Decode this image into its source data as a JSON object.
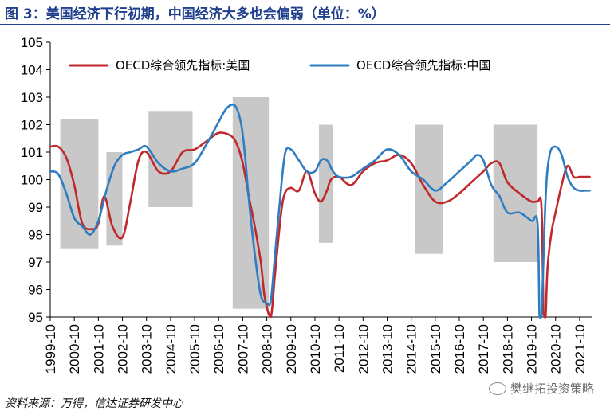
{
  "title": "图 3：美国经济下行初期，中国经济大多也会偏弱（单位：%）",
  "source": "资料来源：万得，信达证券研发中心",
  "watermark": "樊继拓投资策略",
  "colors": {
    "title": "#1f3e8c",
    "us": "#c0282c",
    "cn": "#2e7dc0",
    "shade": "#c8c8c8"
  },
  "chart_data": {
    "type": "line",
    "title": "",
    "xlabel": "",
    "ylabel": "",
    "ylim": [
      95,
      105
    ],
    "yticks": [
      95,
      96,
      97,
      98,
      99,
      100,
      101,
      102,
      103,
      104,
      105
    ],
    "xlim": [
      "1999-10",
      "2022-04"
    ],
    "x_tick_labels": [
      "1999-10",
      "2000-10",
      "2001-10",
      "2002-10",
      "2003-10",
      "2004-10",
      "2005-10",
      "2006-10",
      "2007-10",
      "2008-10",
      "2009-10",
      "2010-10",
      "2011-10",
      "2012-10",
      "2013-10",
      "2014-10",
      "2015-10",
      "2016-10",
      "2017-10",
      "2018-10",
      "2019-10",
      "2020-10",
      "2021-10"
    ],
    "legend_position": "top",
    "grid": false,
    "shaded_bands": [
      {
        "start": "2000-03",
        "end": "2001-10",
        "low": 97.5,
        "high": 102.2
      },
      {
        "start": "2002-02",
        "end": "2002-10",
        "low": 97.6,
        "high": 101.0
      },
      {
        "start": "2003-11",
        "end": "2005-09",
        "low": 99.0,
        "high": 102.5
      },
      {
        "start": "2007-05",
        "end": "2008-11",
        "low": 95.3,
        "high": 103.0
      },
      {
        "start": "2010-12",
        "end": "2011-07",
        "low": 97.7,
        "high": 102.0
      },
      {
        "start": "2014-12",
        "end": "2016-02",
        "low": 97.3,
        "high": 102.0
      },
      {
        "start": "2018-03",
        "end": "2020-01",
        "low": 97.0,
        "high": 102.0
      }
    ],
    "series": [
      {
        "name": "OECD综合领先指标:美国",
        "x": [
          "1999-10",
          "2000-02",
          "2000-06",
          "2000-10",
          "2001-02",
          "2001-07",
          "2001-10",
          "2002-01",
          "2002-05",
          "2002-10",
          "2003-02",
          "2003-06",
          "2003-10",
          "2004-04",
          "2004-10",
          "2005-04",
          "2005-10",
          "2006-04",
          "2006-10",
          "2007-04",
          "2007-07",
          "2007-10",
          "2008-01",
          "2008-04",
          "2008-07",
          "2008-09",
          "2008-12",
          "2009-02",
          "2009-05",
          "2009-07",
          "2009-10",
          "2010-02",
          "2010-06",
          "2010-10",
          "2011-01",
          "2011-04",
          "2011-06",
          "2011-10",
          "2012-04",
          "2012-10",
          "2013-04",
          "2013-10",
          "2014-04",
          "2014-10",
          "2015-04",
          "2015-10",
          "2016-04",
          "2016-10",
          "2017-04",
          "2017-10",
          "2018-02",
          "2018-06",
          "2018-10",
          "2019-04",
          "2019-10",
          "2020-01",
          "2020-03",
          "2020-04",
          "2020-05",
          "2020-06",
          "2020-08",
          "2020-10",
          "2021-01",
          "2021-04",
          "2021-07",
          "2021-10",
          "2022-01",
          "2022-03"
        ],
        "values": [
          101.2,
          101.2,
          100.8,
          99.8,
          98.4,
          98.2,
          98.4,
          99.4,
          98.3,
          97.9,
          99.2,
          100.7,
          101.0,
          100.3,
          100.3,
          101.0,
          101.1,
          101.4,
          101.7,
          101.6,
          101.3,
          100.6,
          99.4,
          98.3,
          97.0,
          95.7,
          95.0,
          96.5,
          98.7,
          99.5,
          99.7,
          99.6,
          100.3,
          99.5,
          99.2,
          99.6,
          100.0,
          100.1,
          99.8,
          100.3,
          100.6,
          100.7,
          100.9,
          100.6,
          99.8,
          99.2,
          99.2,
          99.5,
          99.9,
          100.3,
          100.6,
          100.6,
          99.9,
          99.5,
          99.2,
          99.2,
          99.0,
          95.2,
          95.0,
          96.8,
          98.1,
          98.8,
          99.8,
          100.5,
          100.1,
          100.1,
          100.1,
          100.1
        ]
      },
      {
        "name": "OECD综合领先指标:中国",
        "x": [
          "1999-10",
          "2000-02",
          "2000-06",
          "2000-10",
          "2001-02",
          "2001-06",
          "2001-10",
          "2002-02",
          "2002-06",
          "2002-10",
          "2003-02",
          "2003-06",
          "2003-10",
          "2004-04",
          "2004-10",
          "2005-04",
          "2005-10",
          "2006-04",
          "2006-10",
          "2007-02",
          "2007-06",
          "2007-09",
          "2007-11",
          "2008-01",
          "2008-04",
          "2008-07",
          "2008-10",
          "2008-12",
          "2009-02",
          "2009-04",
          "2009-07",
          "2009-10",
          "2010-02",
          "2010-06",
          "2010-10",
          "2011-01",
          "2011-04",
          "2011-07",
          "2011-10",
          "2012-04",
          "2012-10",
          "2013-04",
          "2013-10",
          "2014-04",
          "2014-10",
          "2015-04",
          "2015-10",
          "2016-04",
          "2016-10",
          "2017-04",
          "2017-07",
          "2017-10",
          "2018-02",
          "2018-06",
          "2018-10",
          "2019-04",
          "2019-10",
          "2020-01",
          "2020-02",
          "2020-03",
          "2020-05",
          "2020-07",
          "2020-10",
          "2021-01",
          "2021-04",
          "2021-07",
          "2021-10",
          "2022-01",
          "2022-03"
        ],
        "values": [
          100.3,
          100.2,
          99.5,
          98.6,
          98.3,
          98.0,
          98.5,
          99.6,
          100.5,
          100.9,
          101.0,
          101.1,
          101.2,
          100.6,
          100.3,
          100.4,
          100.6,
          101.3,
          102.1,
          102.6,
          102.7,
          102.1,
          101.0,
          99.3,
          97.3,
          95.8,
          95.5,
          95.6,
          97.2,
          98.8,
          100.9,
          101.1,
          100.7,
          100.3,
          100.3,
          100.7,
          100.7,
          100.3,
          100.1,
          100.1,
          100.4,
          100.7,
          101.1,
          100.9,
          100.3,
          100.0,
          99.6,
          99.9,
          100.3,
          100.7,
          100.9,
          100.7,
          99.8,
          99.4,
          98.8,
          98.8,
          98.5,
          98.4,
          95.0,
          95.0,
          99.3,
          100.9,
          101.2,
          100.9,
          100.1,
          99.7,
          99.6,
          99.6,
          99.6
        ]
      }
    ]
  }
}
